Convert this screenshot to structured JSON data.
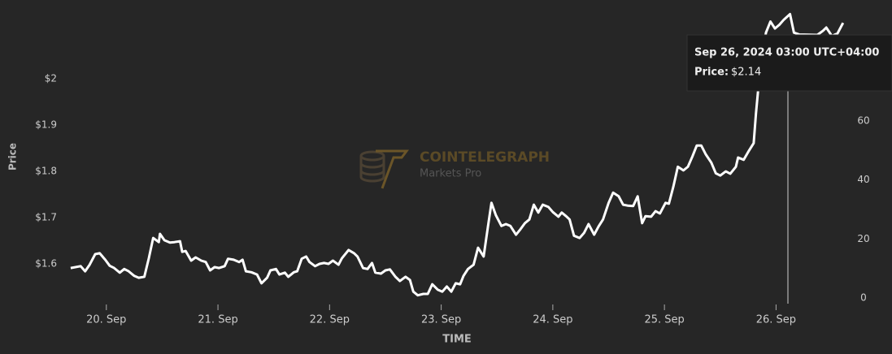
{
  "chart_data": {
    "type": "line",
    "y_label": "Price",
    "x_label": "TIME",
    "watermark": {
      "brand": "COINTELEGRAPH",
      "product": "Markets Pro"
    },
    "color": "#ffffff",
    "x": [
      19.68,
      19.77,
      19.81,
      19.85,
      19.9,
      19.94,
      19.99,
      20.03,
      20.07,
      20.12,
      20.16,
      20.2,
      20.25,
      20.29,
      20.34,
      20.38,
      20.42,
      20.47,
      20.48,
      20.52,
      20.57,
      20.61,
      20.66,
      20.68,
      20.71,
      20.76,
      20.8,
      20.85,
      20.89,
      20.93,
      20.97,
      21.01,
      21.06,
      21.09,
      21.14,
      21.19,
      21.22,
      21.25,
      21.3,
      21.35,
      21.39,
      21.44,
      21.47,
      21.52,
      21.55,
      21.6,
      21.63,
      21.68,
      21.71,
      21.75,
      21.79,
      21.82,
      21.87,
      21.91,
      21.95,
      21.99,
      22.03,
      22.08,
      22.11,
      22.17,
      22.22,
      22.25,
      22.3,
      22.34,
      22.38,
      22.41,
      22.46,
      22.5,
      22.54,
      22.59,
      22.63,
      22.68,
      22.72,
      22.75,
      22.79,
      22.84,
      22.88,
      22.92,
      22.97,
      23.01,
      23.05,
      23.09,
      23.13,
      23.17,
      23.2,
      23.24,
      23.29,
      23.33,
      23.38,
      23.42,
      23.45,
      23.49,
      23.54,
      23.58,
      23.62,
      23.67,
      23.71,
      23.75,
      23.79,
      23.83,
      23.87,
      23.91,
      23.96,
      24.0,
      24.05,
      24.08,
      24.12,
      24.15,
      24.19,
      24.24,
      24.28,
      24.32,
      24.37,
      24.41,
      24.45,
      24.5,
      24.54,
      24.59,
      24.63,
      24.67,
      24.72,
      24.76,
      24.8,
      24.83,
      24.88,
      24.92,
      24.96,
      25.01,
      25.04,
      25.08,
      25.12,
      25.17,
      25.21,
      25.25,
      25.29,
      25.33,
      25.37,
      25.42,
      25.46,
      25.5,
      25.55,
      25.59,
      25.64,
      25.66,
      25.71,
      25.75,
      25.8,
      25.82,
      25.85,
      25.88,
      25.91,
      25.95,
      25.99,
      26.03,
      26.07,
      26.125,
      26.16,
      26.21,
      26.37,
      26.42,
      26.45,
      26.5,
      26.55,
      26.6
    ],
    "values": [
      1.591,
      1.595,
      1.584,
      1.598,
      1.621,
      1.623,
      1.609,
      1.596,
      1.591,
      1.581,
      1.589,
      1.584,
      1.574,
      1.57,
      1.572,
      1.612,
      1.656,
      1.647,
      1.665,
      1.651,
      1.646,
      1.647,
      1.649,
      1.626,
      1.628,
      1.607,
      1.614,
      1.607,
      1.604,
      1.586,
      1.593,
      1.591,
      1.595,
      1.611,
      1.609,
      1.604,
      1.609,
      1.584,
      1.582,
      1.577,
      1.558,
      1.57,
      1.586,
      1.589,
      1.577,
      1.581,
      1.572,
      1.582,
      1.584,
      1.611,
      1.616,
      1.604,
      1.595,
      1.6,
      1.602,
      1.6,
      1.607,
      1.598,
      1.612,
      1.63,
      1.623,
      1.616,
      1.591,
      1.589,
      1.602,
      1.581,
      1.579,
      1.586,
      1.588,
      1.572,
      1.563,
      1.572,
      1.565,
      1.54,
      1.532,
      1.535,
      1.535,
      1.556,
      1.544,
      1.54,
      1.551,
      1.54,
      1.558,
      1.556,
      1.574,
      1.589,
      1.598,
      1.635,
      1.616,
      1.682,
      1.732,
      1.705,
      1.682,
      1.686,
      1.682,
      1.663,
      1.675,
      1.688,
      1.696,
      1.728,
      1.711,
      1.728,
      1.723,
      1.712,
      1.702,
      1.711,
      1.703,
      1.696,
      1.661,
      1.656,
      1.667,
      1.686,
      1.663,
      1.681,
      1.696,
      1.732,
      1.754,
      1.746,
      1.728,
      1.726,
      1.725,
      1.746,
      1.688,
      1.703,
      1.702,
      1.714,
      1.709,
      1.732,
      1.73,
      1.767,
      1.81,
      1.802,
      1.81,
      1.832,
      1.856,
      1.856,
      1.837,
      1.819,
      1.796,
      1.791,
      1.8,
      1.795,
      1.81,
      1.83,
      1.825,
      1.842,
      1.861,
      1.925,
      2.003,
      2.056,
      2.1,
      2.124,
      2.109,
      2.117,
      2.128,
      2.14,
      2.1,
      2.096,
      2.095,
      2.104,
      2.111,
      2.093,
      2.098,
      2.121
    ],
    "xlim": [
      19.63,
      26.66
    ],
    "xticks": [
      {
        "value": 20,
        "label": "20. Sep"
      },
      {
        "value": 21,
        "label": "21. Sep"
      },
      {
        "value": 22,
        "label": "22. Sep"
      },
      {
        "value": 23,
        "label": "23. Sep"
      },
      {
        "value": 24,
        "label": "24. Sep"
      },
      {
        "value": 25,
        "label": "25. Sep"
      },
      {
        "value": 26,
        "label": "26. Sep"
      }
    ],
    "ylim": [
      1.521,
      2.153
    ],
    "yticks": [
      {
        "value": 1.6,
        "label": "$1.6"
      },
      {
        "value": 1.7,
        "label": "$1.7"
      },
      {
        "value": 1.8,
        "label": "$1.8"
      },
      {
        "value": 1.9,
        "label": "$1.9"
      },
      {
        "value": 2,
        "label": "$2"
      }
    ],
    "y2lim": [
      -0.83,
      98.26
    ],
    "y2ticks": [
      0,
      20,
      40,
      60
    ],
    "grid": false,
    "tooltip": {
      "title": "Sep 26, 2024 03:00 UTC+04:00",
      "label": "Price:",
      "value": "$2.14"
    }
  }
}
